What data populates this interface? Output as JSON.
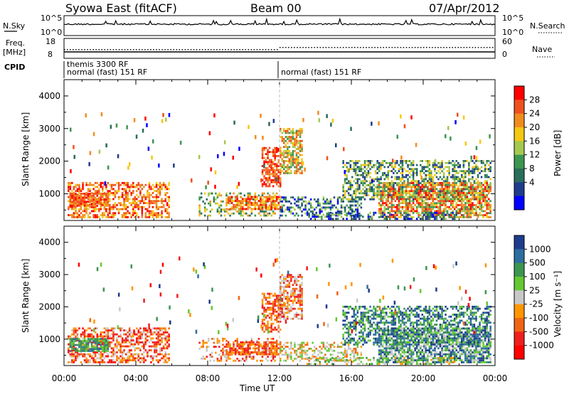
{
  "header": {
    "station": "Syowa East (fitACF)",
    "beam": "Beam 00",
    "date": "07/Apr/2012"
  },
  "noise_panel": {
    "left_label": "N.Sky",
    "right_label": "N.Search",
    "left_ticks": [
      "10^5",
      "10^0"
    ],
    "right_ticks": [
      "10^5",
      "10^0"
    ]
  },
  "freq_panel": {
    "left_label_1": "Freq.",
    "left_label_2": "[MHz]",
    "right_label": "Nave",
    "left_ticks": [
      "18",
      "8"
    ],
    "right_ticks": [
      "60",
      "0"
    ]
  },
  "cpid": {
    "label": "CPID",
    "line1": "themis 3300 RF",
    "line2": "normal (fast) 151 RF",
    "line3": "normal (fast) 151 RF"
  },
  "x_axis": {
    "label": "Time UT",
    "ticks": [
      "00:00",
      "04:00",
      "08:00",
      "12:00",
      "16:00",
      "20:00",
      "00:00"
    ]
  },
  "y_axis": {
    "label": "Slant Range [km]",
    "ticks": [
      "1000",
      "2000",
      "3000",
      "4000"
    ]
  },
  "chart_data": [
    {
      "type": "heatmap",
      "title": "Power",
      "xlabel": "",
      "ylabel": "Slant Range [km]",
      "xlim_hours": [
        0,
        24
      ],
      "ylim": [
        180,
        4500
      ],
      "colorbar": {
        "label": "Power [dB]",
        "ticks": [
          "28",
          "24",
          "20",
          "16",
          "12",
          "8",
          "4"
        ],
        "colors": [
          "#ff0000",
          "#f0501e",
          "#f08c1e",
          "#f5c814",
          "#a5c850",
          "#3c9650",
          "#286e5a",
          "#1e3c8c",
          "#0000ff"
        ]
      }
    },
    {
      "type": "heatmap",
      "title": "Velocity",
      "xlabel": "Time UT",
      "ylabel": "Slant Range [km]",
      "xlim_hours": [
        0,
        24
      ],
      "ylim": [
        180,
        4500
      ],
      "colorbar": {
        "label": "Velocity [m s⁻¹]",
        "ticks": [
          "1000",
          "500",
          "100",
          "25",
          "-25",
          "-100",
          "-500",
          "-1000"
        ],
        "colors": [
          "#1e3c8c",
          "#2d6ea0",
          "#3c9650",
          "#64c832",
          "#c8c8c8",
          "#ff9600",
          "#f06414",
          "#f01e1e",
          "#ff0000"
        ]
      }
    }
  ]
}
